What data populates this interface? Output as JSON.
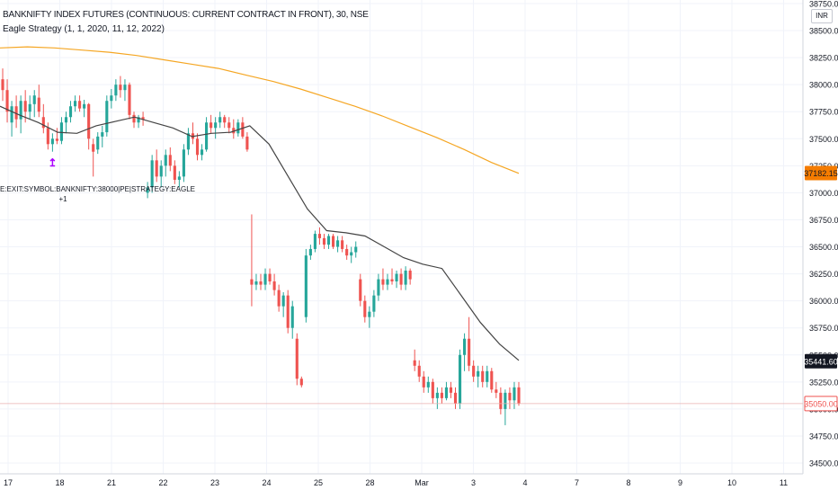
{
  "header": {
    "title": "BANKNIFTY INDEX FUTURES (CONTINUOUS: CURRENT CONTRACT IN FRONT), 30, NSE",
    "strategy": "Eagle Strategy (1, 1, 2020, 11, 12, 2022)",
    "currency": "INR"
  },
  "colors": {
    "up": "#26a69a",
    "down": "#ef5350",
    "ma_long": "#f5a623",
    "ma_short": "#444444",
    "signal": "#aa00ff",
    "last_price_bg": "#f57c00",
    "ma_value_bg": "#131722",
    "current_price_bg": "#ef5350"
  },
  "chart_data": {
    "type": "candlestick",
    "title": "BANKNIFTY INDEX FUTURES (CONTINUOUS: CURRENT CONTRACT IN FRONT), 30, NSE",
    "ylim": [
      34500,
      38750
    ],
    "y_ticks": [
      "38750.00",
      "38500.00",
      "38250.00",
      "38000.00",
      "37750.00",
      "37500.00",
      "37250.00",
      "37000.00",
      "36750.00",
      "36500.00",
      "36250.00",
      "36000.00",
      "35750.00",
      "35500.00",
      "35250.00",
      "35000.00",
      "34750.00",
      "34500.00"
    ],
    "x_ticks": [
      "17",
      "18",
      "21",
      "22",
      "23",
      "24",
      "25",
      "28",
      "Mar",
      "3",
      "4",
      "7",
      "8",
      "9",
      "10",
      "11"
    ],
    "candles": [
      {
        "o": 38050,
        "h": 38150,
        "l": 37850,
        "c": 37950
      },
      {
        "o": 37950,
        "h": 38050,
        "l": 37650,
        "c": 37750
      },
      {
        "o": 37650,
        "h": 37850,
        "l": 37520,
        "c": 37800
      },
      {
        "o": 37800,
        "h": 37900,
        "l": 37600,
        "c": 37680
      },
      {
        "o": 37680,
        "h": 37900,
        "l": 37550,
        "c": 37850
      },
      {
        "o": 37850,
        "h": 37950,
        "l": 37650,
        "c": 37750
      },
      {
        "o": 37750,
        "h": 37900,
        "l": 37680,
        "c": 37820
      },
      {
        "o": 37820,
        "h": 37950,
        "l": 37700,
        "c": 37900
      },
      {
        "o": 37880,
        "h": 38000,
        "l": 37700,
        "c": 37750
      },
      {
        "o": 37700,
        "h": 37820,
        "l": 37550,
        "c": 37600
      },
      {
        "o": 37600,
        "h": 37650,
        "l": 37400,
        "c": 37450
      },
      {
        "o": 37450,
        "h": 37550,
        "l": 37380,
        "c": 37500
      },
      {
        "o": 37500,
        "h": 37600,
        "l": 37450,
        "c": 37480
      },
      {
        "o": 37480,
        "h": 37700,
        "l": 37450,
        "c": 37650
      },
      {
        "o": 37650,
        "h": 37750,
        "l": 37550,
        "c": 37700
      },
      {
        "o": 37700,
        "h": 37850,
        "l": 37650,
        "c": 37800
      },
      {
        "o": 37800,
        "h": 37900,
        "l": 37750,
        "c": 37850
      },
      {
        "o": 37850,
        "h": 37900,
        "l": 37750,
        "c": 37780
      },
      {
        "o": 37780,
        "h": 37860,
        "l": 37700,
        "c": 37820
      },
      {
        "o": 37820,
        "h": 37830,
        "l": 37400,
        "c": 37500
      },
      {
        "o": 37450,
        "h": 37500,
        "l": 37150,
        "c": 37380
      },
      {
        "o": 37400,
        "h": 37560,
        "l": 37360,
        "c": 37520
      },
      {
        "o": 37520,
        "h": 37620,
        "l": 37420,
        "c": 37560
      },
      {
        "o": 37560,
        "h": 37900,
        "l": 37520,
        "c": 37850
      },
      {
        "o": 37850,
        "h": 37960,
        "l": 37780,
        "c": 37900
      },
      {
        "o": 37900,
        "h": 38050,
        "l": 37850,
        "c": 38000
      },
      {
        "o": 38000,
        "h": 38080,
        "l": 37880,
        "c": 37950
      },
      {
        "o": 37950,
        "h": 38050,
        "l": 37850,
        "c": 38000
      },
      {
        "o": 38000,
        "h": 38020,
        "l": 37680,
        "c": 37720
      },
      {
        "o": 37720,
        "h": 37750,
        "l": 37600,
        "c": 37650
      },
      {
        "o": 37650,
        "h": 37720,
        "l": 37600,
        "c": 37700
      },
      {
        "o": 37700,
        "h": 37750,
        "l": 37620,
        "c": 37680
      },
      {
        "o": 37000,
        "h": 37100,
        "l": 36950,
        "c": 37050
      },
      {
        "o": 37050,
        "h": 37350,
        "l": 37000,
        "c": 37300
      },
      {
        "o": 37300,
        "h": 37400,
        "l": 37100,
        "c": 37150
      },
      {
        "o": 37150,
        "h": 37300,
        "l": 37050,
        "c": 37250
      },
      {
        "o": 37250,
        "h": 37400,
        "l": 37150,
        "c": 37350
      },
      {
        "o": 37350,
        "h": 37420,
        "l": 37200,
        "c": 37250
      },
      {
        "o": 37250,
        "h": 37300,
        "l": 37080,
        "c": 37120
      },
      {
        "o": 37120,
        "h": 37200,
        "l": 37050,
        "c": 37150
      },
      {
        "o": 37150,
        "h": 37450,
        "l": 37100,
        "c": 37400
      },
      {
        "o": 37400,
        "h": 37600,
        "l": 37350,
        "c": 37550
      },
      {
        "o": 37550,
        "h": 37650,
        "l": 37450,
        "c": 37500
      },
      {
        "o": 37500,
        "h": 37550,
        "l": 37300,
        "c": 37350
      },
      {
        "o": 37350,
        "h": 37450,
        "l": 37300,
        "c": 37400
      },
      {
        "o": 37400,
        "h": 37700,
        "l": 37380,
        "c": 37650
      },
      {
        "o": 37650,
        "h": 37720,
        "l": 37550,
        "c": 37600
      },
      {
        "o": 37600,
        "h": 37700,
        "l": 37500,
        "c": 37650
      },
      {
        "o": 37650,
        "h": 37750,
        "l": 37600,
        "c": 37700
      },
      {
        "o": 37700,
        "h": 37720,
        "l": 37600,
        "c": 37650
      },
      {
        "o": 37650,
        "h": 37700,
        "l": 37550,
        "c": 37600
      },
      {
        "o": 37600,
        "h": 37680,
        "l": 37500,
        "c": 37550
      },
      {
        "o": 37550,
        "h": 37680,
        "l": 37520,
        "c": 37650
      },
      {
        "o": 37650,
        "h": 37700,
        "l": 37500,
        "c": 37520
      },
      {
        "o": 37520,
        "h": 37560,
        "l": 37380,
        "c": 37400
      },
      {
        "o": 36200,
        "h": 36800,
        "l": 35950,
        "c": 36150
      },
      {
        "o": 36150,
        "h": 36250,
        "l": 36100,
        "c": 36180
      },
      {
        "o": 36180,
        "h": 36250,
        "l": 36100,
        "c": 36150
      },
      {
        "o": 36150,
        "h": 36300,
        "l": 36100,
        "c": 36250
      },
      {
        "o": 36250,
        "h": 36300,
        "l": 36150,
        "c": 36180
      },
      {
        "o": 36180,
        "h": 36250,
        "l": 36050,
        "c": 36100
      },
      {
        "o": 36100,
        "h": 36150,
        "l": 35900,
        "c": 35950
      },
      {
        "o": 35950,
        "h": 36080,
        "l": 35850,
        "c": 36050
      },
      {
        "o": 36050,
        "h": 36100,
        "l": 35700,
        "c": 35750
      },
      {
        "o": 35750,
        "h": 36000,
        "l": 35650,
        "c": 35950
      },
      {
        "o": 35650,
        "h": 35700,
        "l": 35220,
        "c": 35280
      },
      {
        "o": 35280,
        "h": 35300,
        "l": 35200,
        "c": 35220
      },
      {
        "o": 35850,
        "h": 36480,
        "l": 35800,
        "c": 36420
      },
      {
        "o": 36420,
        "h": 36520,
        "l": 36380,
        "c": 36480
      },
      {
        "o": 36480,
        "h": 36650,
        "l": 36450,
        "c": 36620
      },
      {
        "o": 36620,
        "h": 36680,
        "l": 36520,
        "c": 36580
      },
      {
        "o": 36580,
        "h": 36620,
        "l": 36480,
        "c": 36520
      },
      {
        "o": 36520,
        "h": 36620,
        "l": 36480,
        "c": 36600
      },
      {
        "o": 36600,
        "h": 36620,
        "l": 36480,
        "c": 36500
      },
      {
        "o": 36500,
        "h": 36600,
        "l": 36450,
        "c": 36560
      },
      {
        "o": 36560,
        "h": 36600,
        "l": 36450,
        "c": 36480
      },
      {
        "o": 36480,
        "h": 36520,
        "l": 36380,
        "c": 36420
      },
      {
        "o": 36420,
        "h": 36500,
        "l": 36350,
        "c": 36450
      },
      {
        "o": 36450,
        "h": 36550,
        "l": 36400,
        "c": 36500
      },
      {
        "o": 36200,
        "h": 36250,
        "l": 35950,
        "c": 36000
      },
      {
        "o": 36000,
        "h": 36050,
        "l": 35800,
        "c": 35850
      },
      {
        "o": 35850,
        "h": 35950,
        "l": 35750,
        "c": 35900
      },
      {
        "o": 35900,
        "h": 36100,
        "l": 35850,
        "c": 36050
      },
      {
        "o": 36050,
        "h": 36250,
        "l": 36000,
        "c": 36200
      },
      {
        "o": 36200,
        "h": 36300,
        "l": 36100,
        "c": 36150
      },
      {
        "o": 36150,
        "h": 36250,
        "l": 36100,
        "c": 36200
      },
      {
        "o": 36200,
        "h": 36300,
        "l": 36150,
        "c": 36180
      },
      {
        "o": 36180,
        "h": 36280,
        "l": 36120,
        "c": 36250
      },
      {
        "o": 36250,
        "h": 36300,
        "l": 36100,
        "c": 36150
      },
      {
        "o": 36150,
        "h": 36320,
        "l": 36100,
        "c": 36280
      },
      {
        "o": 36280,
        "h": 36300,
        "l": 36150,
        "c": 36200
      },
      {
        "o": 35450,
        "h": 35550,
        "l": 35350,
        "c": 35400
      },
      {
        "o": 35400,
        "h": 35450,
        "l": 35250,
        "c": 35300
      },
      {
        "o": 35300,
        "h": 35350,
        "l": 35150,
        "c": 35200
      },
      {
        "o": 35200,
        "h": 35300,
        "l": 35150,
        "c": 35250
      },
      {
        "o": 35250,
        "h": 35280,
        "l": 35050,
        "c": 35100
      },
      {
        "o": 35100,
        "h": 35200,
        "l": 35000,
        "c": 35150
      },
      {
        "o": 35150,
        "h": 35200,
        "l": 35050,
        "c": 35100
      },
      {
        "o": 35100,
        "h": 35250,
        "l": 35080,
        "c": 35200
      },
      {
        "o": 35200,
        "h": 35250,
        "l": 35100,
        "c": 35150
      },
      {
        "o": 35150,
        "h": 35200,
        "l": 35000,
        "c": 35050
      },
      {
        "o": 35050,
        "h": 35550,
        "l": 35000,
        "c": 35500
      },
      {
        "o": 35500,
        "h": 35700,
        "l": 35350,
        "c": 35650
      },
      {
        "o": 35650,
        "h": 35850,
        "l": 35350,
        "c": 35400
      },
      {
        "o": 35400,
        "h": 35450,
        "l": 35250,
        "c": 35300
      },
      {
        "o": 35300,
        "h": 35400,
        "l": 35200,
        "c": 35350
      },
      {
        "o": 35350,
        "h": 35400,
        "l": 35200,
        "c": 35250
      },
      {
        "o": 35250,
        "h": 35400,
        "l": 35200,
        "c": 35350
      },
      {
        "o": 35350,
        "h": 35380,
        "l": 35150,
        "c": 35180
      },
      {
        "o": 35180,
        "h": 35250,
        "l": 35100,
        "c": 35150
      },
      {
        "o": 35150,
        "h": 35200,
        "l": 34950,
        "c": 35000
      },
      {
        "o": 35000,
        "h": 35180,
        "l": 34850,
        "c": 35150
      },
      {
        "o": 35150,
        "h": 35200,
        "l": 35000,
        "c": 35080
      },
      {
        "o": 35080,
        "h": 35250,
        "l": 35000,
        "c": 35200
      },
      {
        "o": 35200,
        "h": 35250,
        "l": 35030,
        "c": 35050
      }
    ],
    "ma_long": {
      "values": [
        38340,
        38350,
        38340,
        38320,
        38300,
        38270,
        38230,
        38190,
        38150,
        38090,
        38030,
        37960,
        37880,
        37800,
        37710,
        37610,
        37510,
        37400,
        37280,
        37180
      ],
      "label": "37182.15"
    },
    "ma_short": {
      "values": [
        37800,
        37720,
        37650,
        37560,
        37550,
        37620,
        37660,
        37700,
        37650,
        37600,
        37520,
        37550,
        37560,
        37620,
        37450,
        37150,
        36850,
        36650,
        36630,
        36600,
        36500,
        36400,
        36340,
        36300,
        36050,
        35800,
        35600,
        35450
      ],
      "label": "35441.60"
    },
    "current_price": "35050.00",
    "annotation": {
      "text": "E:EXIT:SYMBOL:BANKNIFTY:38000|PE|STRATEGY:EAGLE",
      "count": "+1"
    }
  }
}
